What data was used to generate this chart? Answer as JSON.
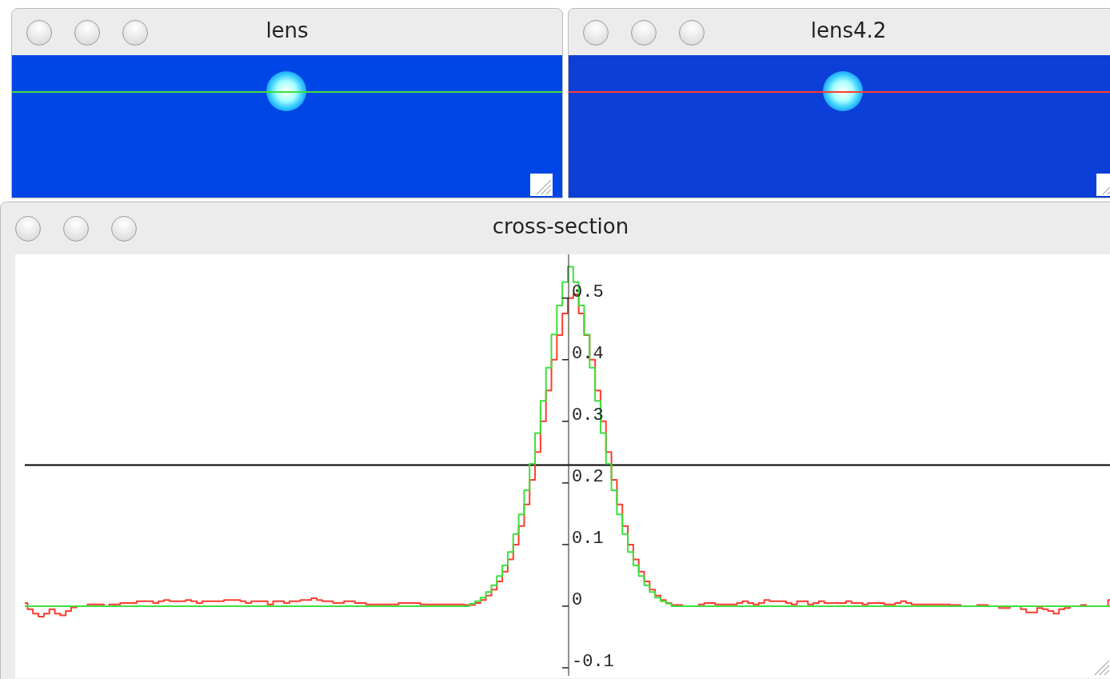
{
  "chart_data": {
    "type": "step",
    "title": "cross-section",
    "annotations": [
      "lens",
      "lens4.2"
    ],
    "categories": [
      null,
      null,
      null,
      null,
      null,
      null,
      null,
      null,
      null,
      null,
      null,
      null,
      null,
      null,
      null,
      null,
      null,
      null,
      null,
      null,
      null,
      null,
      null,
      null,
      null,
      null,
      null,
      null,
      null,
      null,
      null,
      null,
      null,
      null,
      null,
      null,
      null,
      null,
      null,
      null,
      null,
      null,
      null,
      null,
      null,
      null,
      null,
      null,
      null,
      null,
      null,
      null,
      null,
      null,
      null,
      null,
      null,
      null,
      null,
      null,
      null,
      null,
      null,
      null,
      null,
      null,
      null,
      null,
      null,
      null,
      null,
      null,
      null,
      null,
      null,
      null,
      null,
      null,
      null,
      null,
      null,
      null,
      null,
      null,
      null,
      null,
      null,
      null,
      null,
      null,
      null,
      null,
      null,
      null,
      null,
      null,
      null,
      null,
      null,
      null,
      null,
      null,
      null,
      null,
      null,
      null,
      null,
      null,
      null,
      null,
      null,
      null,
      null,
      null,
      null,
      null,
      null,
      null,
      null,
      null,
      null,
      null,
      null,
      null,
      null,
      null,
      null,
      null,
      null,
      null,
      null,
      null,
      null,
      null,
      null,
      null,
      null,
      null,
      null,
      null,
      null,
      null,
      null,
      null,
      null,
      null,
      null,
      null,
      null,
      null,
      null,
      null,
      null,
      null,
      null,
      null,
      null,
      null,
      null,
      null,
      null,
      null,
      null,
      null,
      null,
      null,
      null,
      null,
      null,
      null,
      null,
      null,
      null,
      null,
      null,
      null,
      null,
      null,
      null,
      null,
      null,
      null,
      null,
      null,
      null,
      null,
      null,
      null,
      null,
      null,
      null,
      null,
      null,
      null,
      null,
      null,
      null,
      null,
      null,
      null
    ],
    "series": [
      {
        "color": "#ff3b30",
        "values": [
          0.005,
          -0.005,
          -0.012,
          -0.017,
          -0.012,
          -0.005,
          -0.012,
          -0.015,
          -0.008,
          -0.002,
          0,
          0,
          0.003,
          0.003,
          0.003,
          0,
          0.003,
          0.003,
          0.005,
          0.005,
          0.005,
          0.008,
          0.008,
          0.008,
          0.005,
          0.008,
          0.01,
          0.008,
          0.008,
          0.008,
          0.01,
          0.008,
          0.005,
          0.008,
          0.008,
          0.008,
          0.008,
          0.01,
          0.01,
          0.01,
          0.008,
          0.005,
          0.008,
          0.008,
          0.008,
          0.003,
          0.008,
          0.008,
          0.005,
          0.008,
          0.008,
          0.01,
          0.01,
          0.013,
          0.01,
          0.008,
          0.008,
          0.005,
          0.005,
          0.008,
          0.008,
          0.005,
          0.005,
          0.003,
          0.003,
          0.003,
          0.003,
          0.003,
          0.003,
          0.005,
          0.005,
          0.005,
          0.005,
          0.003,
          0.003,
          0.003,
          0.003,
          0.003,
          0.003,
          0.003,
          0.003,
          0.002,
          0.002,
          0.005,
          0.01,
          0.017,
          0.027,
          0.04,
          0.056,
          0.076,
          0.1,
          0.13,
          0.165,
          0.205,
          0.25,
          0.3,
          0.35,
          0.4,
          0.44,
          0.475,
          0.5,
          0.506,
          0.475,
          0.44,
          0.4,
          0.35,
          0.3,
          0.25,
          0.205,
          0.165,
          0.13,
          0.1,
          0.076,
          0.056,
          0.04,
          0.027,
          0.017,
          0.01,
          0.005,
          0.002,
          0.002,
          0,
          0,
          0,
          0.003,
          0.005,
          0.005,
          0.003,
          0.003,
          0.003,
          0.003,
          0.005,
          0.008,
          0.005,
          0.003,
          0.005,
          0.01,
          0.008,
          0.008,
          0.008,
          0.005,
          0.003,
          0.008,
          0.008,
          0.003,
          0.005,
          0.008,
          0.005,
          0.005,
          0.005,
          0.005,
          0.008,
          0.005,
          0.005,
          0.003,
          0.005,
          0.005,
          0.005,
          0.003,
          0.003,
          0.005,
          0.008,
          0.005,
          0.003,
          0.003,
          0.003,
          0.003,
          0.003,
          0.003,
          0.003,
          0.002,
          0.002,
          0,
          0,
          0,
          0.002,
          0.002,
          0,
          0,
          -0.003,
          -0.003,
          0,
          0,
          -0.005,
          -0.01,
          -0.01,
          -0.003,
          -0.005,
          -0.008,
          -0.012,
          -0.005,
          -0.003,
          0,
          0,
          0.002,
          0,
          0,
          0,
          0,
          0.01
        ]
      },
      {
        "color": "#3ee03e",
        "values": [
          0,
          0,
          0,
          0,
          0,
          0,
          0,
          0,
          0,
          0,
          0,
          0,
          0,
          0,
          0,
          0,
          0,
          0,
          0,
          0,
          0,
          0,
          0,
          0,
          0,
          0,
          0,
          0,
          0,
          0,
          0,
          0,
          0,
          0,
          0,
          0,
          0,
          0,
          0,
          0,
          0,
          0,
          0,
          0,
          0,
          0,
          0,
          0,
          0,
          0,
          0,
          0,
          0,
          0,
          0,
          0,
          0,
          0,
          0,
          0,
          0,
          0,
          0,
          0,
          0,
          0,
          0,
          0,
          0,
          0,
          0,
          0,
          0,
          0,
          0,
          0,
          0,
          0,
          0,
          0,
          0,
          0,
          0.004,
          0.008,
          0.014,
          0.023,
          0.034,
          0.049,
          0.066,
          0.088,
          0.117,
          0.149,
          0.188,
          0.231,
          0.281,
          0.333,
          0.387,
          0.441,
          0.488,
          0.526,
          0.551,
          0.526,
          0.488,
          0.441,
          0.387,
          0.333,
          0.281,
          0.231,
          0.188,
          0.149,
          0.117,
          0.088,
          0.066,
          0.049,
          0.034,
          0.023,
          0.014,
          0.008,
          0.004,
          0,
          0,
          0,
          0,
          0,
          0,
          0,
          0,
          0,
          0,
          0,
          0,
          0,
          0,
          0,
          0,
          0,
          0,
          0,
          0,
          0,
          0,
          0,
          0,
          0,
          0,
          0,
          0,
          0,
          0,
          0,
          0,
          0,
          0,
          0,
          0,
          0,
          0,
          0,
          0,
          0,
          0,
          0,
          0,
          0,
          0,
          0,
          0,
          0,
          0,
          0,
          0,
          0,
          0,
          0,
          0,
          0,
          0,
          0,
          0,
          0,
          0,
          0,
          0,
          0,
          0,
          0,
          0,
          0,
          0,
          0,
          0,
          0,
          0,
          0,
          0,
          0,
          0,
          0,
          0,
          0
        ]
      }
    ],
    "ylim": [
      -0.113,
      0.571
    ],
    "yticks": [
      -0.1,
      0,
      0.1,
      0.2,
      0.3,
      0.4,
      0.5
    ],
    "ref_lines": [
      {
        "axis": "y",
        "value": 0.229,
        "color": "#000000"
      }
    ],
    "tick_labels": "y",
    "grid": false,
    "legend": false,
    "marker": "none",
    "line_style": "solid"
  }
}
